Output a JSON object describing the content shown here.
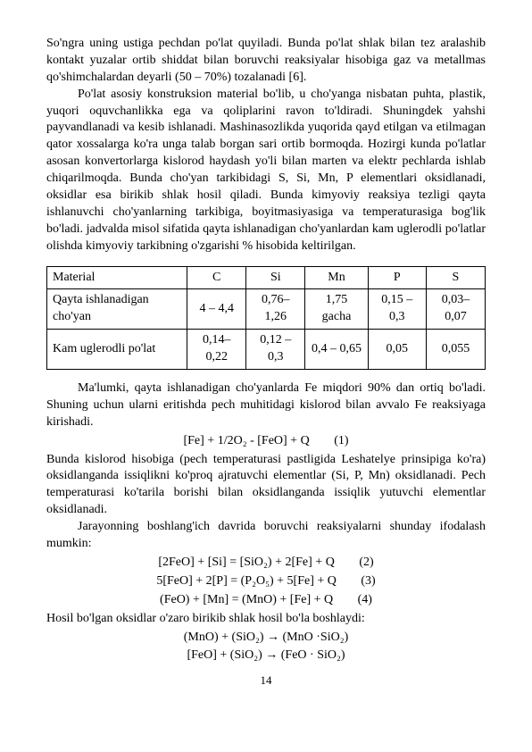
{
  "paragraphs": {
    "p1": "So'ngra uning ustiga pechdan po'lat quyiladi. Bunda po'lat shlak bilan tez aralashib kontakt yuzalar ortib shiddat bilan boruvchi reaksiyalar hisobiga gaz va metallmas qo'shimchalardan deyarli (50 – 70%) tozalanadi [6].",
    "p2": "Po'lat asosiy konstruksion material bo'lib, u cho'yanga nisbatan puhta, plastik, yuqori oquvchanlikka ega va qoliplarini ravon to'ldiradi. Shuningdek yahshi payvandlanadi va kesib ishlanadi. Mashinasozlikda yuqorida qayd etilgan va etilmagan qator xossalarga ko'ra unga talab borgan sari ortib bormoqda. Hozirgi kunda po'latlar asosan konvertorlarga kislorod haydash yo'li bilan marten va elektr pechlarda ishlab chiqarilmoqda. Bunda cho'yan tarkibidagi S, Si, Mn, P elementlari oksidlanadi, oksidlar esa birikib shlak hosil qiladi. Bunda kimyoviy reaksiya tezligi qayta ishlanuvchi cho'yanlarning tarkibiga, boyitmasiyasiga va temperaturasiga bog'lik bo'ladi. jadvalda misol sifatida qayta ishlanadigan cho'yanlardan kam uglerodli po'latlar olishda kimyoviy tarkibning o'zgarishi % hisobida keltirilgan.",
    "p3": "Ma'lumki, qayta ishlanadigan cho'yanlarda Fe miqdori 90% dan ortiq bo'ladi. Shuning uchun ularni eritishda pech muhitidagi kislorod bilan avvalo Fe reaksiyaga kirishadi.",
    "p4": "Bunda kislorod hisobiga (pech temperaturasi pastligida Leshatelye prinsipiga ko'ra) oksidlanganda issiqlikni ko'proq ajratuvchi elementlar (Si, P, Mn) oksidlanadi. Pech temperaturasi ko'tarila borishi bilan oksidlanganda issiqlik yutuvchi elementlar oksidlanadi.",
    "p5": "Jarayonning boshlang'ich davrida boruvchi reaksiyalarni shunday ifodalash mumkin:",
    "p6": "Hosil bo'lgan oksidlar o'zaro birikib shlak hosil bo'la boshlaydi:"
  },
  "table": {
    "headers": [
      "Material",
      "C",
      "Si",
      "Mn",
      "P",
      "S"
    ],
    "rows": [
      {
        "material": "Qayta ishlanadigan cho'yan",
        "c": "4 – 4,4",
        "si": "0,76–1,26",
        "mn": "1,75 gacha",
        "p": "0,15 – 0,3",
        "s": "0,03–0,07"
      },
      {
        "material": "Kam uglerodli po'lat",
        "c": "0,14–0,22",
        "si": "0,12 – 0,3",
        "mn": "0,4 – 0,65",
        "p": "0,05",
        "s": "0,055"
      }
    ]
  },
  "equations": {
    "eq1": {
      "body": "[Fe] + 1/2O₂ - [FeO] + Q",
      "num": "(1)"
    },
    "eq2": {
      "body": "[2FeO] + [Si] = [SiO₂) + 2[Fe] + Q",
      "num": "(2)"
    },
    "eq3": {
      "body": "5[FeO] + 2[P] = (P₂O₅) + 5[Fe] + Q",
      "num": "(3)"
    },
    "eq4": {
      "body": "(FeO) + [Mn] = (MnO) + [Fe] + Q",
      "num": "(4)"
    },
    "eq5": {
      "body": "(MnO) + (SiO₂)  →  (MnO ·SiO₂)"
    },
    "eq6": {
      "body": "[FeO] + (SiO₂) →  (FeO · SiO₂)"
    }
  },
  "pageNumber": "14"
}
